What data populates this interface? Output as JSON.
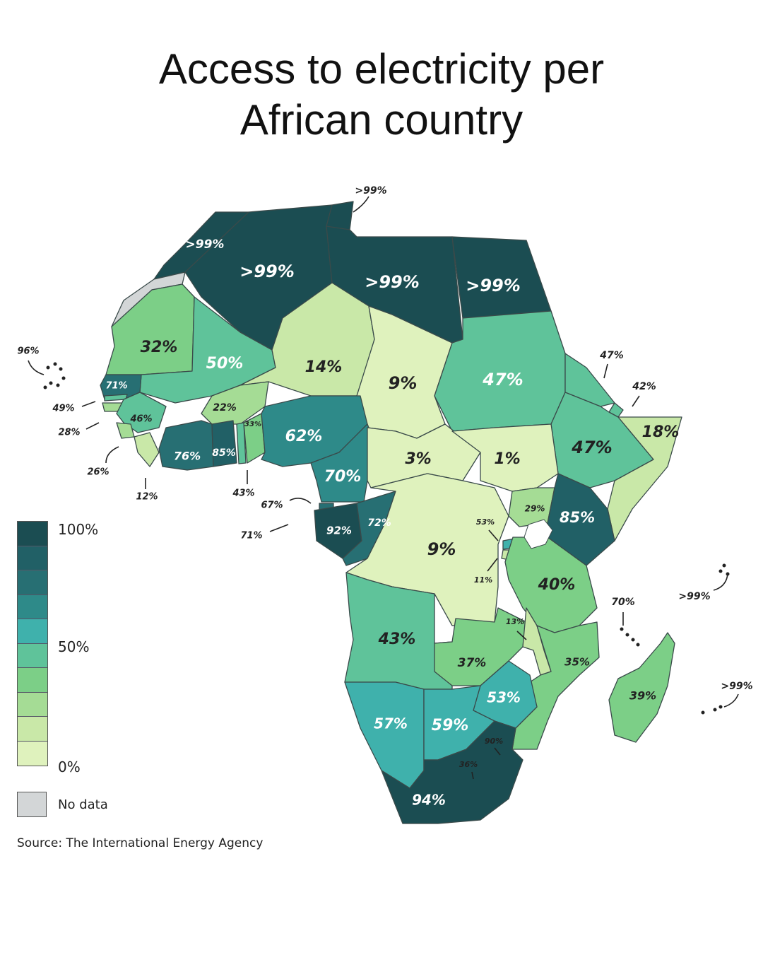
{
  "title": {
    "line1": "Access to electricity per",
    "line2": "African country"
  },
  "source": "Source: The International Energy Agency",
  "legend": {
    "ticks": [
      "100%",
      "50%",
      "0%"
    ],
    "no_data": "No data",
    "scale_colors": [
      "#1b4d52",
      "#216066",
      "#276f73",
      "#2e8a89",
      "#3fb1ac",
      "#5fc39a",
      "#7ccf87",
      "#a5dc95",
      "#c9e8a8",
      "#dff2bd"
    ],
    "no_data_color": "#d3d6d7"
  },
  "countries": [
    {
      "name": "Morocco",
      "label": ">99%",
      "value": 99.5
    },
    {
      "name": "Algeria",
      "label": ">99%",
      "value": 99.5
    },
    {
      "name": "Tunisia",
      "label": ">99%",
      "value": 99.5
    },
    {
      "name": "Libya",
      "label": ">99%",
      "value": 99.5
    },
    {
      "name": "Egypt",
      "label": ">99%",
      "value": 99.5
    },
    {
      "name": "Western Sahara",
      "label": "",
      "value": null
    },
    {
      "name": "Mauritania",
      "label": "32%",
      "value": 32
    },
    {
      "name": "Mali",
      "label": "50%",
      "value": 50
    },
    {
      "name": "Niger",
      "label": "14%",
      "value": 14
    },
    {
      "name": "Chad",
      "label": "9%",
      "value": 9
    },
    {
      "name": "Sudan",
      "label": "47%",
      "value": 47
    },
    {
      "name": "Eritrea",
      "label": "47%",
      "value": 47
    },
    {
      "name": "Djibouti",
      "label": "42%",
      "value": 42
    },
    {
      "name": "Ethiopia",
      "label": "47%",
      "value": 47
    },
    {
      "name": "Somalia",
      "label": "18%",
      "value": 18
    },
    {
      "name": "Cabo Verde",
      "label": "96%",
      "value": 96
    },
    {
      "name": "Senegal",
      "label": "71%",
      "value": 71
    },
    {
      "name": "Gambia",
      "label": "49%",
      "value": 49
    },
    {
      "name": "Guinea-Bissau",
      "label": "28%",
      "value": 28
    },
    {
      "name": "Guinea",
      "label": "46%",
      "value": 46
    },
    {
      "name": "Sierra Leone",
      "label": "26%",
      "value": 26
    },
    {
      "name": "Liberia",
      "label": "12%",
      "value": 12
    },
    {
      "name": "Burkina Faso",
      "label": "22%",
      "value": 22
    },
    {
      "name": "Cote d'Ivoire",
      "label": "76%",
      "value": 76
    },
    {
      "name": "Ghana",
      "label": "85%",
      "value": 85
    },
    {
      "name": "Togo",
      "label": "43%",
      "value": 43
    },
    {
      "name": "Benin",
      "label": "33%",
      "value": 33
    },
    {
      "name": "Nigeria",
      "label": "62%",
      "value": 62
    },
    {
      "name": "Cameroon",
      "label": "70%",
      "value": 70
    },
    {
      "name": "Central African Republic",
      "label": "3%",
      "value": 3
    },
    {
      "name": "South Sudan",
      "label": "1%",
      "value": 1
    },
    {
      "name": "Sao Tome and Principe",
      "label": "67%",
      "value": 67
    },
    {
      "name": "Equatorial Guinea",
      "label": "71%",
      "value": 71
    },
    {
      "name": "Gabon",
      "label": "92%",
      "value": 92
    },
    {
      "name": "Republic of the Congo",
      "label": "72%",
      "value": 72
    },
    {
      "name": "DR Congo",
      "label": "9%",
      "value": 9
    },
    {
      "name": "Uganda",
      "label": "29%",
      "value": 29
    },
    {
      "name": "Kenya",
      "label": "85%",
      "value": 85
    },
    {
      "name": "Rwanda",
      "label": "53%",
      "value": 53
    },
    {
      "name": "Burundi",
      "label": "11%",
      "value": 11
    },
    {
      "name": "Tanzania",
      "label": "40%",
      "value": 40
    },
    {
      "name": "Seychelles",
      "label": ">99%",
      "value": 99.5
    },
    {
      "name": "Comoros",
      "label": "70%",
      "value": 70
    },
    {
      "name": "Angola",
      "label": "43%",
      "value": 43
    },
    {
      "name": "Zambia",
      "label": "37%",
      "value": 37
    },
    {
      "name": "Malawi",
      "label": "13%",
      "value": 13
    },
    {
      "name": "Mozambique",
      "label": "35%",
      "value": 35
    },
    {
      "name": "Madagascar",
      "label": "39%",
      "value": 39
    },
    {
      "name": "Mauritius",
      "label": ">99%",
      "value": 99.5
    },
    {
      "name": "Zimbabwe",
      "label": "53%",
      "value": 53
    },
    {
      "name": "Namibia",
      "label": "57%",
      "value": 57
    },
    {
      "name": "Botswana",
      "label": "59%",
      "value": 59
    },
    {
      "name": "Eswatini",
      "label": "90%",
      "value": 90
    },
    {
      "name": "Lesotho",
      "label": "36%",
      "value": 36
    },
    {
      "name": "South Africa",
      "label": "94%",
      "value": 94
    }
  ]
}
